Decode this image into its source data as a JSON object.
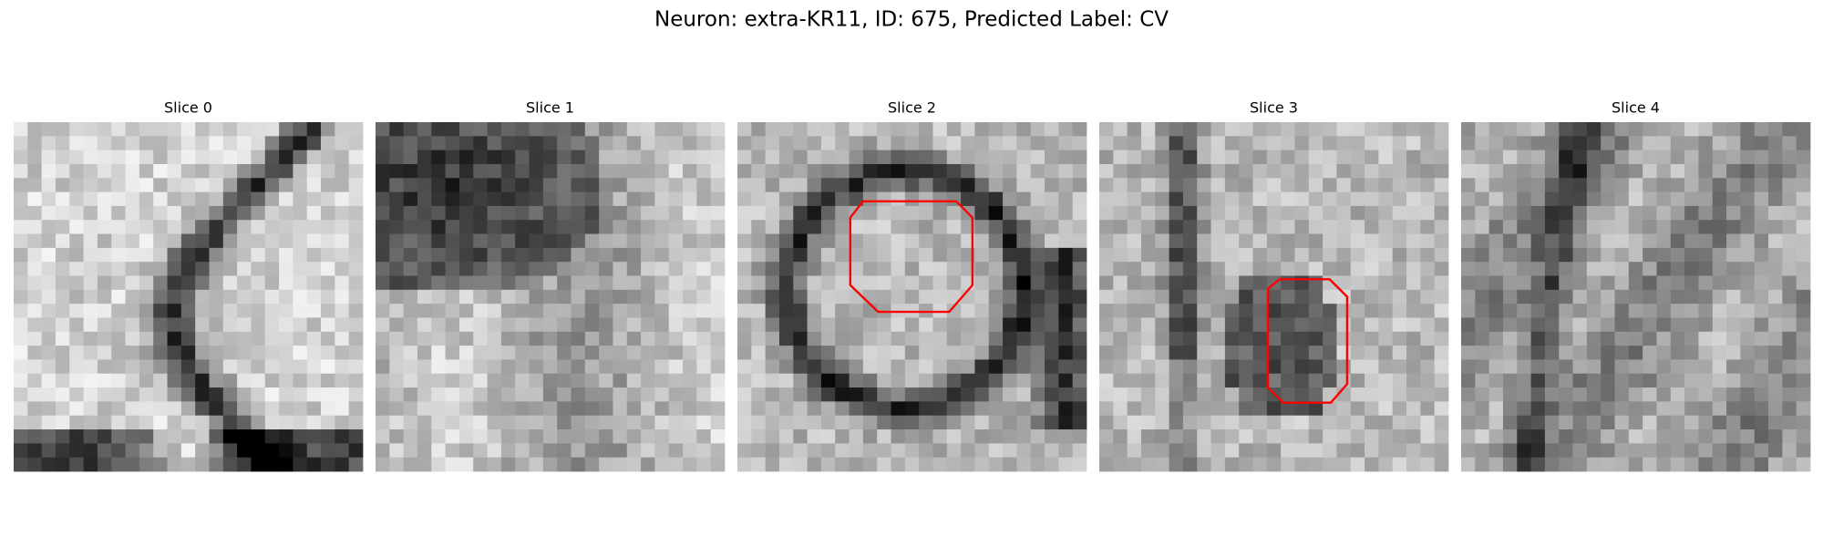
{
  "title": "Neuron: extra-KR11, ID: 675, Predicted Label: CV",
  "panels": [
    {
      "label": "Slice 0"
    },
    {
      "label": "Slice 1"
    },
    {
      "label": "Slice 2"
    },
    {
      "label": "Slice 3"
    },
    {
      "label": "Slice 4"
    }
  ]
}
